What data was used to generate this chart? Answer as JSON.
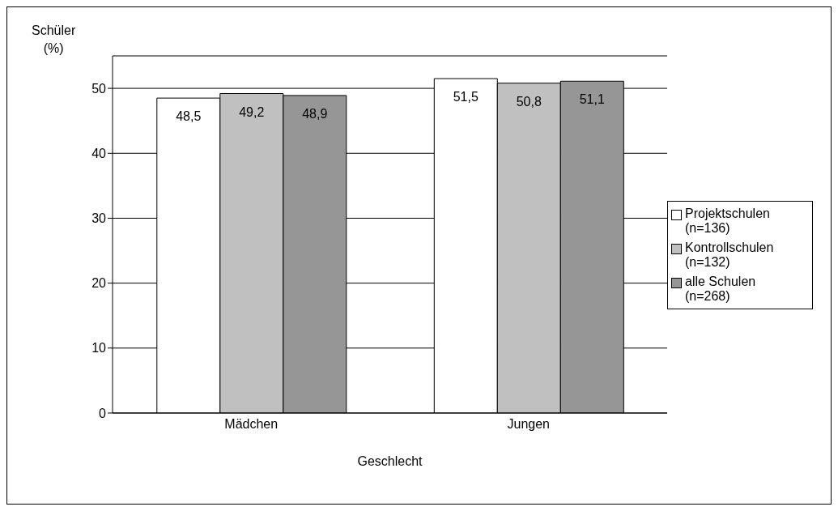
{
  "chart_data": {
    "type": "bar",
    "xlabel": "Geschlecht",
    "ylabel": "Schüler (%)",
    "categories": [
      "Mädchen",
      "Jungen"
    ],
    "series": [
      {
        "name": "Projektschulen (n=136)",
        "color": "#ffffff",
        "values": [
          48.5,
          51.5
        ],
        "value_labels": [
          "48,5",
          "51,5"
        ]
      },
      {
        "name": "Kontrollschulen (n=132)",
        "color": "#c0c0c0",
        "values": [
          49.2,
          50.8
        ],
        "value_labels": [
          "49,2",
          "50,8"
        ]
      },
      {
        "name": "alle Schulen (n=268)",
        "color": "#969696",
        "values": [
          48.9,
          51.1
        ],
        "value_labels": [
          "48,9",
          "51,1"
        ]
      }
    ],
    "ylim": [
      0,
      55
    ],
    "yticks": [
      0,
      10,
      20,
      30,
      40,
      50
    ],
    "grid": "y",
    "legend": "right"
  }
}
